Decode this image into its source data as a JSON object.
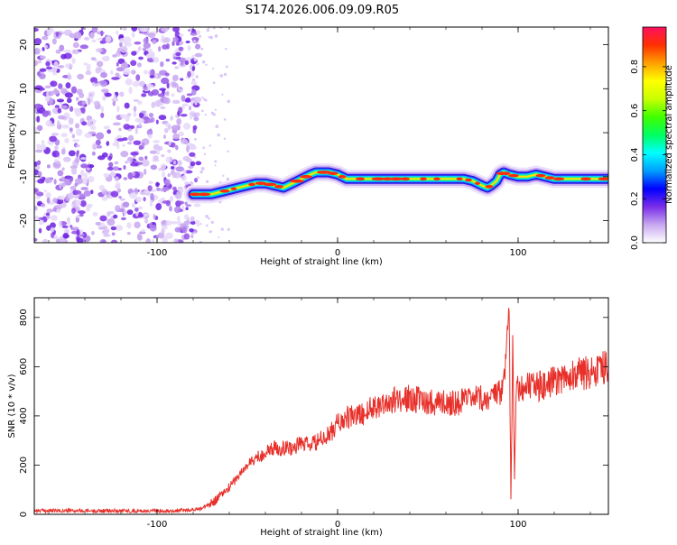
{
  "title": "S174.2026.006.09.09.R05",
  "chart_data": [
    {
      "type": "heatmap",
      "xlabel": "Height of straight line (km)",
      "ylabel": "Frequency (Hz)",
      "xlim": [
        -168,
        150
      ],
      "ylim": [
        -25,
        24
      ],
      "x_ticks": [
        -100,
        0,
        100
      ],
      "y_ticks": [
        -20,
        -10,
        0,
        10,
        20
      ],
      "grid": false,
      "noise_region_x": [
        -168,
        -80
      ],
      "ridge": {
        "x": [
          -80,
          -78,
          -70,
          -65,
          -60,
          -55,
          -50,
          -45,
          -40,
          -35,
          -30,
          -25,
          -20,
          -15,
          -12,
          -10,
          -5,
          0,
          5,
          10,
          20,
          30,
          40,
          50,
          60,
          70,
          75,
          80,
          83,
          85,
          88,
          90,
          92,
          95,
          100,
          105,
          110,
          120,
          130,
          140,
          150
        ],
        "y": [
          -14,
          -14,
          -14,
          -13.5,
          -13,
          -12.5,
          -12,
          -11.5,
          -11.5,
          -12,
          -12.5,
          -11.5,
          -10.5,
          -9.5,
          -9,
          -9,
          -9,
          -9.5,
          -10.5,
          -10.5,
          -10.5,
          -10.5,
          -10.5,
          -10.5,
          -10.5,
          -10.5,
          -11,
          -12,
          -12.5,
          -12,
          -11,
          -9.5,
          -9,
          -9.5,
          -10,
          -10,
          -9.5,
          -10.5,
          -10.5,
          -10.5,
          -10.5
        ]
      },
      "colorbar": {
        "label": "Normalized spectral amplitude",
        "range": [
          0,
          0.98
        ],
        "ticks": [
          0.0,
          0.2,
          0.4,
          0.6,
          0.8
        ],
        "tick_labels": [
          "0.0",
          "0.2",
          "0.4",
          "0.6",
          "0.8"
        ],
        "colors": [
          "#ffffff",
          "#c8a8f0",
          "#7a2ee8",
          "#0000ff",
          "#00a0ff",
          "#00ffff",
          "#00ff60",
          "#40ff00",
          "#c8ff00",
          "#ffff00",
          "#ffa000",
          "#ff3000",
          "#ff1060"
        ]
      }
    },
    {
      "type": "line",
      "xlabel": "Height of straight line (km)",
      "ylabel": "SNR (10 * v/v)",
      "xlim": [
        -168,
        150
      ],
      "ylim": [
        0,
        880
      ],
      "x_ticks": [
        -100,
        0,
        100
      ],
      "y_ticks": [
        0,
        200,
        400,
        600,
        800
      ],
      "grid": false,
      "color": "#e8302a",
      "series": [
        {
          "x": [
            -168,
            -150,
            -130,
            -110,
            -90,
            -80,
            -75,
            -70,
            -65,
            -60,
            -55,
            -50,
            -45,
            -40,
            -35,
            -30,
            -25,
            -20,
            -15,
            -10,
            -5,
            0,
            5,
            10,
            15,
            20,
            25,
            30,
            35,
            40,
            45,
            50,
            55,
            60,
            65,
            70,
            75,
            80,
            85,
            88,
            90,
            92,
            94,
            95,
            96,
            97,
            98,
            99,
            100,
            105,
            110,
            115,
            120,
            125,
            130,
            135,
            140,
            145,
            150
          ],
          "values": [
            15,
            14,
            14,
            14,
            15,
            18,
            25,
            45,
            75,
            110,
            155,
            200,
            230,
            250,
            270,
            270,
            270,
            290,
            280,
            300,
            320,
            370,
            390,
            400,
            410,
            440,
            450,
            460,
            470,
            470,
            465,
            460,
            455,
            455,
            455,
            460,
            465,
            470,
            475,
            480,
            490,
            520,
            700,
            880,
            60,
            700,
            150,
            540,
            520,
            520,
            520,
            520,
            540,
            560,
            570,
            570,
            580,
            590,
            600
          ]
        }
      ]
    }
  ]
}
